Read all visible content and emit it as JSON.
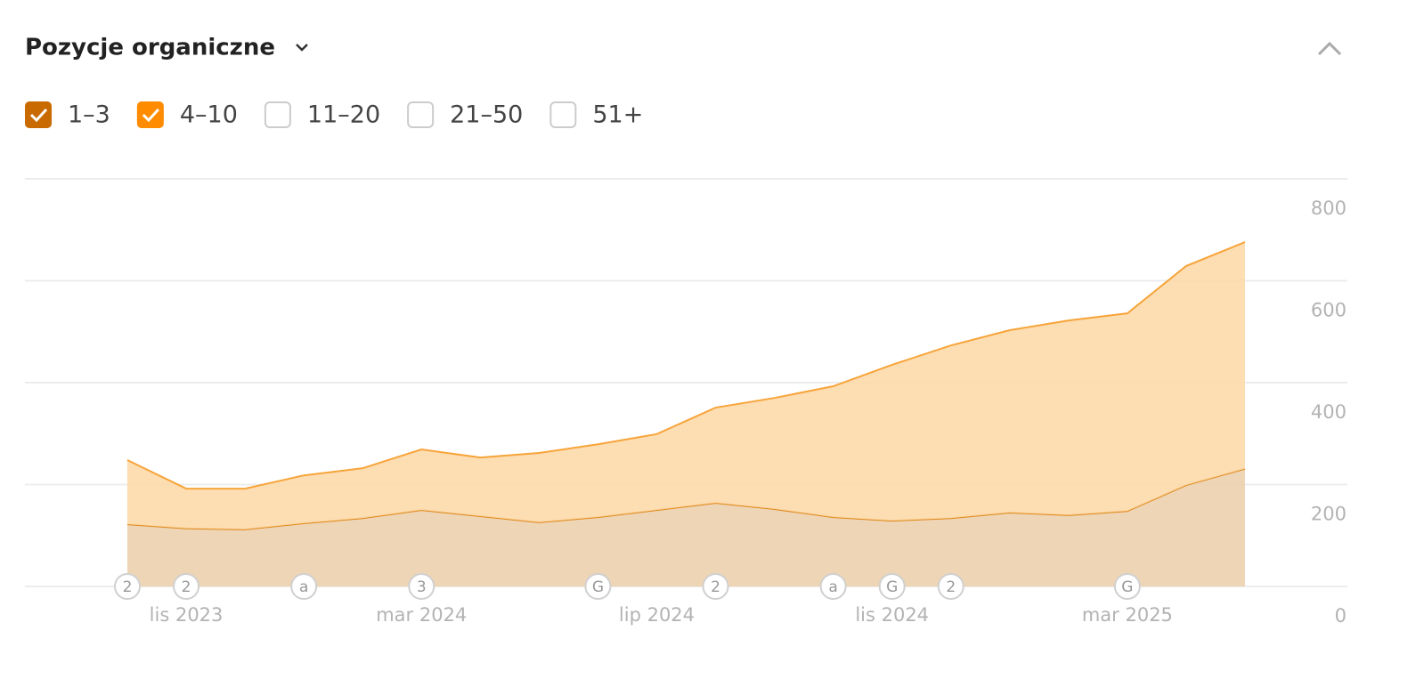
{
  "chart_data": {
    "type": "stacked-area",
    "title": "Pozycje organiczne",
    "categories": [
      null,
      "lis 2023",
      null,
      null,
      null,
      "mar 2024",
      null,
      null,
      null,
      "lip 2024",
      null,
      null,
      null,
      "lis 2024",
      null,
      null,
      null,
      "mar 2025",
      null,
      null
    ],
    "series": [
      {
        "name": "1–3",
        "color": "#c96a00",
        "line_color": "#e08a1c",
        "fill": "#ecd0ad",
        "values": [
          122,
          114,
          112,
          124,
          134,
          150,
          138,
          126,
          136,
          150,
          164,
          152,
          136,
          129,
          134,
          145,
          140,
          148,
          199,
          231
        ]
      },
      {
        "name": "4–10",
        "color": "#ff8c00",
        "line_color": "#f7a43a",
        "fill": "#fdd9aa",
        "values": [
          126,
          78,
          80,
          94,
          98,
          119,
          115,
          136,
          143,
          149,
          187,
          218,
          257,
          306,
          339,
          358,
          382,
          388,
          430,
          445
        ]
      }
    ],
    "inactive_series": [
      "11–20",
      "21–50",
      "51+"
    ],
    "event_markers": [
      "2",
      "2",
      null,
      "a",
      null,
      "3",
      null,
      null,
      "G",
      null,
      "2",
      null,
      "a",
      "G",
      "2",
      null,
      null,
      "G",
      null,
      null
    ],
    "ylim": [
      0,
      800
    ],
    "yticks": [
      0,
      200,
      400,
      600,
      800
    ],
    "grid": true
  }
}
